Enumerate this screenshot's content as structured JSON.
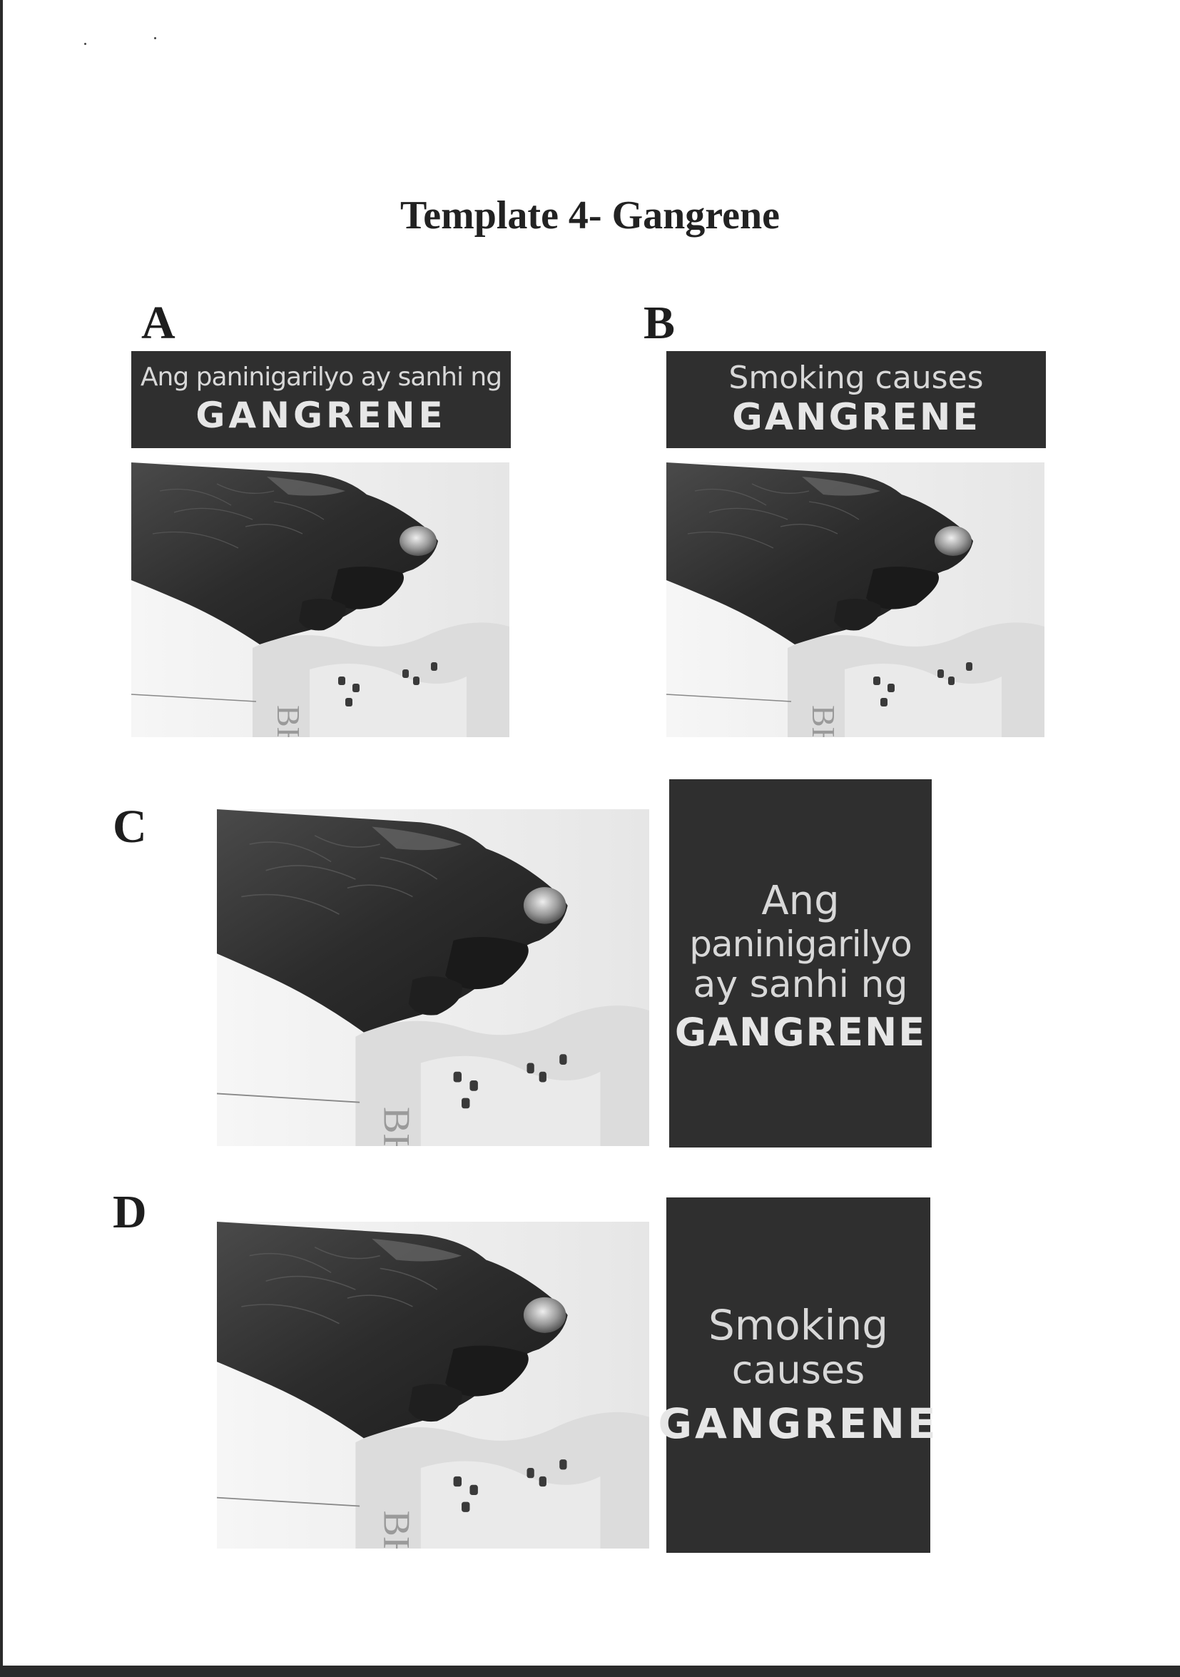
{
  "title": "Template 4- Gangrene",
  "panels": {
    "a": {
      "letter": "A",
      "line1": "Ang paninigarilyo ay sanhi ng",
      "keyword": "GANGRENE"
    },
    "b": {
      "letter": "B",
      "line1": "Smoking causes",
      "keyword": "GANGRENE"
    },
    "c": {
      "letter": "C",
      "lines": [
        "Ang",
        "paninigarilyo",
        "ay sanhi ng"
      ],
      "keyword": "GANGRENE"
    },
    "d": {
      "letter": "D",
      "lines": [
        "Smoking",
        "causes"
      ],
      "keyword": "GANGRENE"
    }
  },
  "photo": {
    "subject": "gangrenous-foot-photo"
  },
  "colors": {
    "label_background": "#2f2f2f",
    "label_text": "#d8d8d8",
    "frame": "#2b2b2b"
  }
}
